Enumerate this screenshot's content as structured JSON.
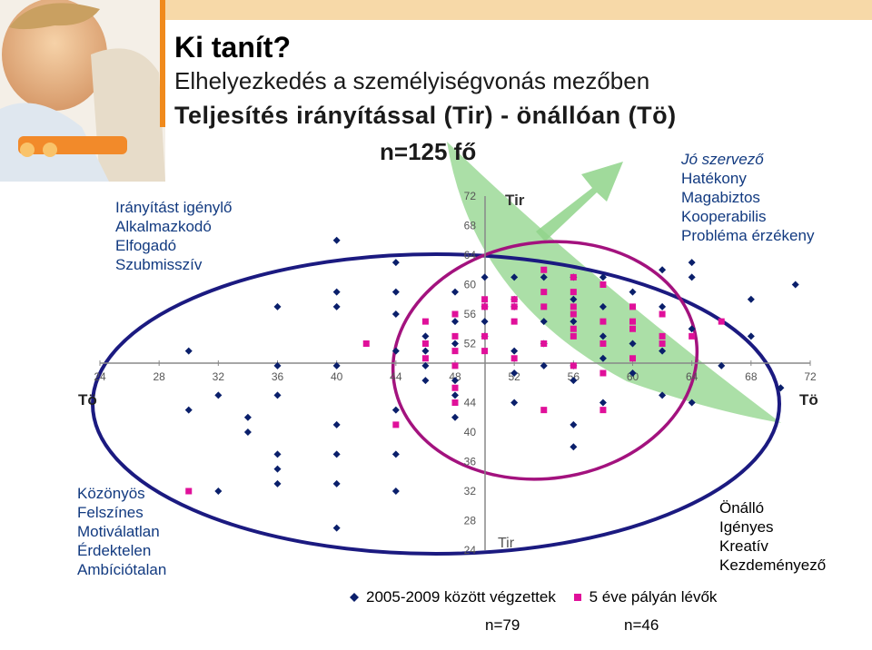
{
  "slide": {
    "title": "Ki tanít?",
    "subtitle": "Elhelyezkedés a személyiségvonás mezőben",
    "chart_title": "Teljesítés irányítással (Tir) - önállóan (Tö)",
    "sample_size": "n=125 fő"
  },
  "quadrants": {
    "top_left": [
      "Irányítást igénylő",
      "Alkalmazkodó",
      "Elfogadó",
      "Szubmisszív"
    ],
    "top_right": [
      "Jó szervező",
      "Hatékony",
      "Magabiztos",
      "Kooperabilis",
      "Probléma érzékeny"
    ],
    "bottom_left": [
      "Közönyös",
      "Felszínes",
      "Motiválatlan",
      "Érdektelen",
      "Ambíciótalan"
    ],
    "bottom_right": [
      "Önálló",
      "Igényes",
      "Kreatív",
      "Kezdeményező"
    ]
  },
  "legend": {
    "n_blue": "n=79",
    "n_pink": "n=46"
  },
  "colors": {
    "blue_series": "#0a1f6b",
    "pink_series": "#e0109a",
    "big_ellipse": "#1b1a80",
    "small_ellipse": "#a3127e",
    "arrow_fill": "#8fd48a",
    "axis": "#888888"
  },
  "chart_data": {
    "type": "scatter",
    "title": "Teljesítés irányítással (Tir) - önállóan (Tö)",
    "xlabel": "Tö",
    "ylabel": "Tir",
    "xlim": [
      24,
      72
    ],
    "ylim": [
      24,
      72
    ],
    "x_ticks": [
      24,
      28,
      32,
      36,
      40,
      44,
      48,
      52,
      56,
      60,
      64,
      68,
      72
    ],
    "y_ticks": [
      24,
      28,
      32,
      36,
      40,
      44,
      48,
      52,
      56,
      60,
      64,
      68,
      72
    ],
    "series": [
      {
        "name": "2005-2009 között végzettek",
        "marker": "diamond",
        "points": [
          [
            40,
            66
          ],
          [
            44,
            63
          ],
          [
            40,
            59
          ],
          [
            36,
            57
          ],
          [
            40,
            57
          ],
          [
            30,
            51
          ],
          [
            36,
            49
          ],
          [
            40,
            49
          ],
          [
            44,
            51
          ],
          [
            48,
            52
          ],
          [
            48,
            55
          ],
          [
            48,
            59
          ],
          [
            50,
            61
          ],
          [
            52,
            61
          ],
          [
            54,
            61
          ],
          [
            56,
            61
          ],
          [
            58,
            61
          ],
          [
            62,
            62
          ],
          [
            64,
            63
          ],
          [
            68,
            58
          ],
          [
            71,
            60
          ],
          [
            64,
            54
          ],
          [
            68,
            53
          ],
          [
            66,
            49
          ],
          [
            62,
            51
          ],
          [
            58,
            50
          ],
          [
            56,
            49
          ],
          [
            54,
            49
          ],
          [
            52,
            51
          ],
          [
            50,
            53
          ],
          [
            50,
            57
          ],
          [
            52,
            57
          ],
          [
            54,
            55
          ],
          [
            56,
            55
          ],
          [
            58,
            57
          ],
          [
            60,
            59
          ],
          [
            46,
            49
          ],
          [
            46,
            53
          ],
          [
            44,
            56
          ],
          [
            30,
            43
          ],
          [
            34,
            42
          ],
          [
            34,
            40
          ],
          [
            36,
            37
          ],
          [
            36,
            35
          ],
          [
            32,
            32
          ],
          [
            36,
            33
          ],
          [
            40,
            41
          ],
          [
            40,
            37
          ],
          [
            40,
            33
          ],
          [
            44,
            43
          ],
          [
            44,
            37
          ],
          [
            44,
            32
          ],
          [
            40,
            27
          ],
          [
            48,
            47
          ],
          [
            48,
            45
          ],
          [
            52,
            44
          ],
          [
            56,
            41
          ],
          [
            56,
            38
          ],
          [
            58,
            44
          ],
          [
            64,
            44
          ],
          [
            60,
            48
          ],
          [
            56,
            47
          ],
          [
            54,
            52
          ],
          [
            60,
            52
          ],
          [
            62,
            45
          ],
          [
            70,
            46
          ],
          [
            52,
            48
          ],
          [
            48,
            42
          ],
          [
            46,
            47
          ],
          [
            46,
            51
          ],
          [
            50,
            55
          ],
          [
            44,
            59
          ],
          [
            32,
            45
          ],
          [
            36,
            45
          ],
          [
            52,
            58
          ],
          [
            56,
            58
          ],
          [
            64,
            61
          ],
          [
            62,
            57
          ],
          [
            58,
            53
          ]
        ]
      },
      {
        "name": "5 éve pályán lévők",
        "marker": "square",
        "points": [
          [
            54,
            62
          ],
          [
            54,
            59
          ],
          [
            56,
            61
          ],
          [
            56,
            57
          ],
          [
            58,
            60
          ],
          [
            60,
            57
          ],
          [
            60,
            54
          ],
          [
            62,
            56
          ],
          [
            62,
            52
          ],
          [
            56,
            54
          ],
          [
            54,
            52
          ],
          [
            52,
            55
          ],
          [
            52,
            57
          ],
          [
            50,
            58
          ],
          [
            50,
            57
          ],
          [
            48,
            56
          ],
          [
            48,
            53
          ],
          [
            46,
            52
          ],
          [
            46,
            50
          ],
          [
            48,
            49
          ],
          [
            50,
            51
          ],
          [
            48,
            44
          ],
          [
            54,
            43
          ],
          [
            58,
            43
          ],
          [
            66,
            55
          ],
          [
            64,
            53
          ],
          [
            60,
            50
          ],
          [
            58,
            52
          ],
          [
            56,
            53
          ],
          [
            52,
            50
          ],
          [
            42,
            52
          ],
          [
            44,
            41
          ],
          [
            30,
            32
          ],
          [
            56,
            56
          ],
          [
            60,
            55
          ],
          [
            58,
            55
          ],
          [
            48,
            46
          ],
          [
            50,
            53
          ],
          [
            56,
            49
          ],
          [
            58,
            48
          ],
          [
            62,
            53
          ],
          [
            56,
            59
          ],
          [
            54,
            57
          ],
          [
            48,
            51
          ],
          [
            52,
            58
          ],
          [
            46,
            55
          ]
        ]
      }
    ],
    "annotations": [
      "Tir",
      "Tö"
    ],
    "grid": false,
    "legend_position": "bottom"
  }
}
